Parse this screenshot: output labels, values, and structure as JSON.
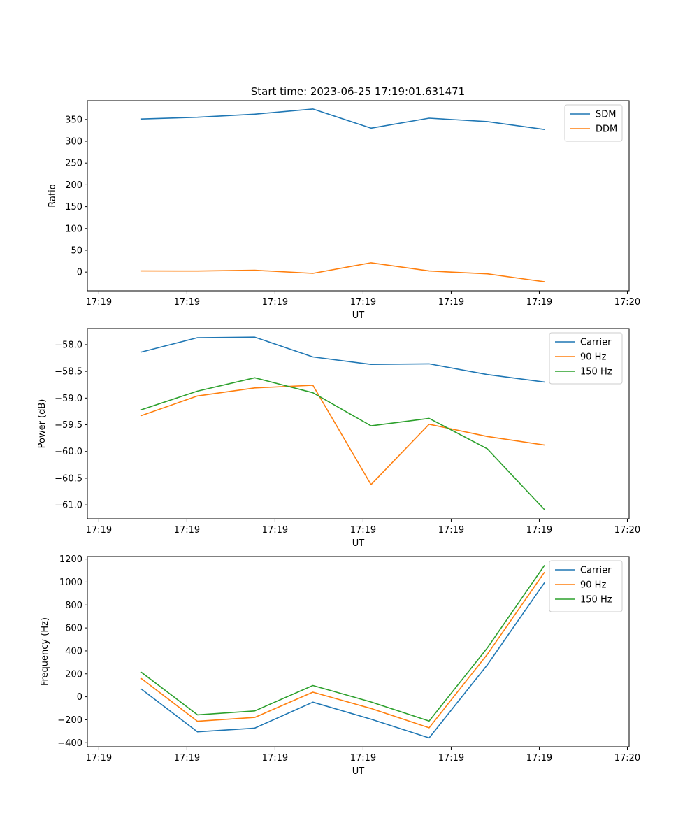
{
  "figure": {
    "title": "Start time: 2023-06-25 17:19:01.631471"
  },
  "colors": {
    "blue": "#1f77b4",
    "orange": "#ff7f0e",
    "green": "#2ca02c"
  },
  "chart_data": [
    {
      "type": "line",
      "title": "Start time: 2023-06-25 17:19:01.631471",
      "xlabel": "UT",
      "ylabel": "Ratio",
      "x_tick_labels": [
        "17:19",
        "17:19",
        "17:19",
        "17:19",
        "17:19",
        "17:19",
        "17:20"
      ],
      "x_tick_positions": [
        0,
        1,
        2,
        3,
        4,
        5,
        6
      ],
      "xlim": [
        -0.13,
        6.02
      ],
      "ylim": [
        -43,
        393
      ],
      "yticks": [
        0,
        50,
        100,
        150,
        200,
        250,
        300,
        350
      ],
      "ytick_labels": [
        "0",
        "50",
        "100",
        "150",
        "200",
        "250",
        "300",
        "350"
      ],
      "x": [
        0.48,
        1.12,
        1.77,
        2.43,
        3.09,
        3.75,
        4.41,
        5.06
      ],
      "series": [
        {
          "name": "SDM",
          "color": "#1f77b4",
          "values": [
            351,
            355,
            362,
            374,
            330,
            353,
            345,
            327
          ]
        },
        {
          "name": "DDM",
          "color": "#ff7f0e",
          "values": [
            2.5,
            2.4,
            4.2,
            -2.9,
            21.2,
            2.5,
            -4.1,
            -22.4
          ]
        }
      ],
      "legend": "top-right",
      "grid": false
    },
    {
      "type": "line",
      "title": "",
      "xlabel": "UT",
      "ylabel": "Power (dB)",
      "x_tick_labels": [
        "17:19",
        "17:19",
        "17:19",
        "17:19",
        "17:19",
        "17:19",
        "17:20"
      ],
      "x_tick_positions": [
        0,
        1,
        2,
        3,
        4,
        5,
        6
      ],
      "xlim": [
        -0.13,
        6.02
      ],
      "ylim": [
        -61.26,
        -57.7
      ],
      "yticks": [
        -61.0,
        -60.5,
        -60.0,
        -59.5,
        -59.0,
        -58.5,
        -58.0
      ],
      "ytick_labels": [
        "−61.0",
        "−60.5",
        "−60.0",
        "−59.5",
        "−59.0",
        "−58.5",
        "−58.0"
      ],
      "x": [
        0.48,
        1.12,
        1.77,
        2.43,
        3.09,
        3.75,
        4.41,
        5.06
      ],
      "series": [
        {
          "name": "Carrier",
          "color": "#1f77b4",
          "values": [
            -58.14,
            -57.87,
            -57.86,
            -58.23,
            -58.37,
            -58.36,
            -58.56,
            -58.7
          ]
        },
        {
          "name": "90 Hz",
          "color": "#ff7f0e",
          "values": [
            -59.33,
            -58.96,
            -58.81,
            -58.76,
            -60.62,
            -59.49,
            -59.72,
            -59.88
          ]
        },
        {
          "name": "150 Hz",
          "color": "#2ca02c",
          "values": [
            -59.22,
            -58.87,
            -58.62,
            -58.9,
            -59.52,
            -59.38,
            -59.95,
            -61.09
          ]
        }
      ],
      "legend": "top-right",
      "grid": false
    },
    {
      "type": "line",
      "title": "",
      "xlabel": "UT",
      "ylabel": "Frequency (Hz)",
      "x_tick_labels": [
        "17:19",
        "17:19",
        "17:19",
        "17:19",
        "17:19",
        "17:19",
        "17:20"
      ],
      "x_tick_positions": [
        0,
        1,
        2,
        3,
        4,
        5,
        6
      ],
      "xlim": [
        -0.13,
        6.02
      ],
      "ylim": [
        -435,
        1222
      ],
      "yticks": [
        -400,
        -200,
        0,
        200,
        400,
        600,
        800,
        1000,
        1200
      ],
      "ytick_labels": [
        "−400",
        "−200",
        "0",
        "200",
        "400",
        "600",
        "800",
        "1000",
        "1200"
      ],
      "x": [
        0.48,
        1.12,
        1.77,
        2.43,
        3.09,
        3.75,
        4.41,
        5.06
      ],
      "series": [
        {
          "name": "Carrier",
          "color": "#1f77b4",
          "values": [
            68,
            -305,
            -273,
            -47,
            -195,
            -358,
            278,
            995
          ]
        },
        {
          "name": "90 Hz",
          "color": "#ff7f0e",
          "values": [
            160,
            -213,
            -180,
            40,
            -102,
            -270,
            370,
            1086
          ]
        },
        {
          "name": "150 Hz",
          "color": "#2ca02c",
          "values": [
            215,
            -157,
            -123,
            98,
            -45,
            -211,
            425,
            1146
          ]
        }
      ],
      "legend": "top-right",
      "grid": false
    }
  ]
}
